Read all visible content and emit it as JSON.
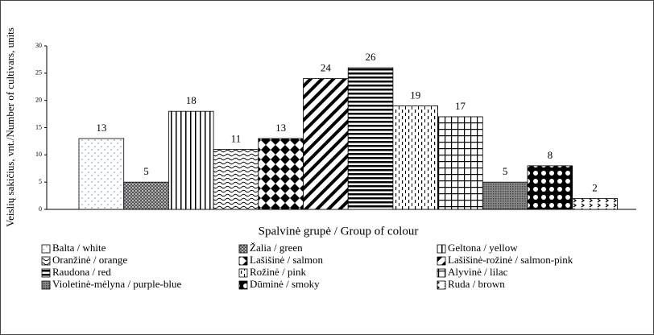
{
  "chart_data": {
    "type": "bar",
    "y_label": "Veislių sakičius, vnt./Number of cultivars, units",
    "x_label": "Spalvinė grupė / Group of colour",
    "categories": [
      "Balta / white",
      "Žalia / green",
      "Geltona / yellow",
      "Oranžinė / orange",
      "Lašišinė / salmon",
      "Lašišinė-rožinė / salmon-pink",
      "Raudona / red",
      "Rožinė / pink",
      "Alyvinė / lilac",
      "Violetinė-mėlyna / purple-blue",
      "Dūminė / smoky",
      "Ruda / brown"
    ],
    "values": [
      13,
      5,
      18,
      11,
      13,
      24,
      26,
      19,
      17,
      5,
      8,
      2
    ],
    "ylim": [
      0,
      30
    ],
    "yticks": [
      0,
      5,
      10,
      15,
      20,
      25,
      30
    ],
    "legend": "bottom"
  }
}
